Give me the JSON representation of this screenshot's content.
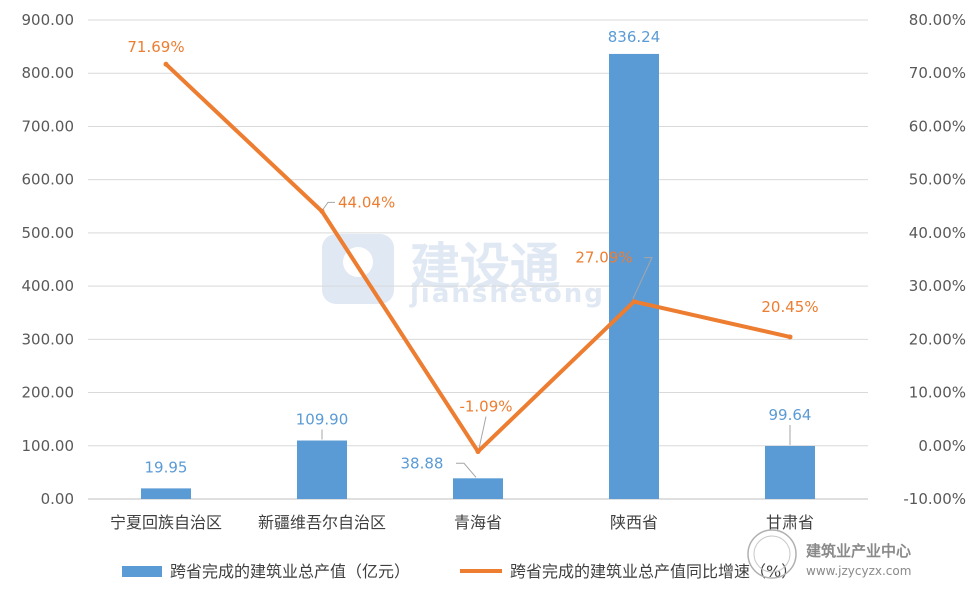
{
  "chart_data": {
    "type": "bar+line",
    "categories": [
      "宁夏回族自治区",
      "新疆维吾尔自治区",
      "青海省",
      "陕西省",
      "甘肃省"
    ],
    "series": [
      {
        "name": "跨省完成的建筑业总产值（亿元）",
        "type": "bar",
        "axis": "left",
        "color": "#5b9bd5",
        "values": [
          19.95,
          109.9,
          38.88,
          836.24,
          99.64
        ],
        "labels": [
          "19.95",
          "109.90",
          "38.88",
          "836.24",
          "99.64"
        ]
      },
      {
        "name": "跨省完成的建筑业总产值同比增速（%）",
        "type": "line",
        "axis": "right",
        "color": "#ed7d31",
        "values": [
          71.69,
          44.04,
          -1.09,
          27.09,
          20.45
        ],
        "labels": [
          "71.69%",
          "44.04%",
          "-1.09%",
          "27.09%",
          "20.45%"
        ]
      }
    ],
    "left_axis": {
      "ylim": [
        0,
        900
      ],
      "ticks": [
        0,
        100,
        200,
        300,
        400,
        500,
        600,
        700,
        800,
        900
      ],
      "tick_labels": [
        "0.00",
        "100.00",
        "200.00",
        "300.00",
        "400.00",
        "500.00",
        "600.00",
        "700.00",
        "800.00",
        "900.00"
      ]
    },
    "right_axis": {
      "ylim": [
        -10,
        80
      ],
      "ticks": [
        -10,
        0,
        10,
        20,
        30,
        40,
        50,
        60,
        70,
        80
      ],
      "tick_labels": [
        "-10.00%",
        "0.00%",
        "10.00%",
        "20.00%",
        "30.00%",
        "40.00%",
        "50.00%",
        "60.00%",
        "70.00%",
        "80.00%"
      ]
    },
    "grid": true,
    "legend_position": "bottom"
  },
  "watermark": {
    "name_cn": "建设通",
    "name_en": "jianshetong"
  },
  "seal": {
    "name": "建筑业产业中心",
    "url": "www.jzycyzx.com"
  }
}
